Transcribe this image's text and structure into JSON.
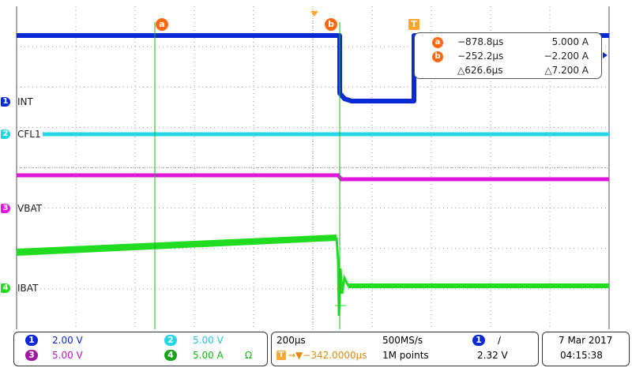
{
  "colors": {
    "ch1": "#0a2ad6",
    "ch2": "#22d6e6",
    "ch3": "#de16de",
    "ch4": "#22dc22",
    "cursor": "#1fb81f",
    "cursor_tag": "#ff6a10",
    "trigger": "#ffa630",
    "grid": "#9a9a9a"
  },
  "channels": [
    {
      "num": "1",
      "label": "INT"
    },
    {
      "num": "2",
      "label": "CFL1"
    },
    {
      "num": "3",
      "label": "VBAT"
    },
    {
      "num": "4",
      "label": "IBAT"
    }
  ],
  "cursors": {
    "a_tag": "a",
    "b_tag": "b",
    "trigger_tag": "T"
  },
  "readout": {
    "a": {
      "time": "−878.8µs",
      "value": "5.000 A"
    },
    "b": {
      "time": "−252.2µs",
      "value": "−2.200 A"
    },
    "delta": {
      "time": "△626.6µs",
      "value": "△7.200 A"
    }
  },
  "bottom": {
    "scales": [
      {
        "num": "1",
        "value": "2.00 V"
      },
      {
        "num": "2",
        "value": "5.00 V"
      },
      {
        "num": "3",
        "value": "5.00 V"
      },
      {
        "num": "4",
        "value": "5.00 A",
        "unit_symbol": "Ω"
      }
    ],
    "timebase": "200µs",
    "sample_rate": "500MS/s",
    "trigger_position": "→▼−342.0000µs",
    "record_length": "1M points",
    "trigger_source": "1",
    "trigger_slope": "∕",
    "trigger_level": "2.32 V",
    "date": "7 Mar  2017",
    "time": "04:15:38"
  }
}
